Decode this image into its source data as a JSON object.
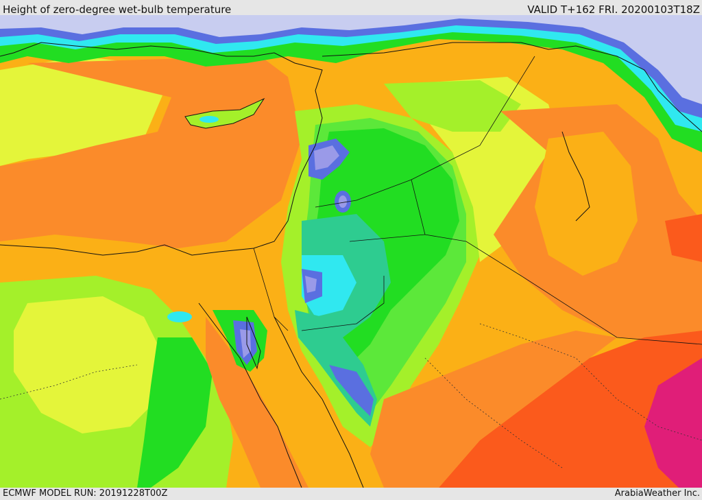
{
  "header": {
    "title": "Height of zero-degree wet-bulb temperature",
    "valid_time": "VALID T+162 FRI. 20200103T18Z"
  },
  "footer": {
    "model_run": "ECMWF MODEL RUN: 20191228T00Z",
    "credit": "ArabiaWeather Inc."
  },
  "map": {
    "region": "Eastern Mediterranean / Levant / Northern Arabia",
    "palette": {
      "sea_lavender": "#c8cdf0",
      "violet": "#9a9ae8",
      "blue": "#5a6fe0",
      "cyan": "#30e8f0",
      "teal": "#2ecc90",
      "green": "#22dd22",
      "lime_green": "#5ce83a",
      "yellow_green": "#a4f02a",
      "yellow": "#e4f53a",
      "orange_yellow": "#fbb016",
      "orange": "#fb8b2a",
      "red_orange": "#fb5a1c",
      "magenta": "#e01e78",
      "border_line": "#111111"
    }
  }
}
